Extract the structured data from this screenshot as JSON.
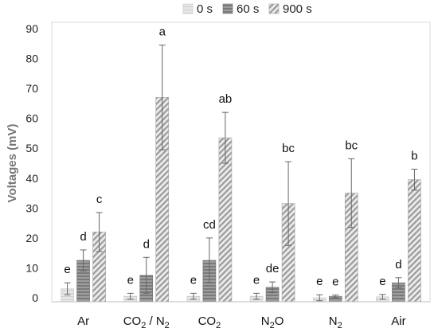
{
  "chart_data": {
    "type": "bar",
    "ylabel": "Voltages (mV)",
    "xlabel": "",
    "ylim": [
      0,
      90
    ],
    "yticks": [
      0,
      10,
      20,
      30,
      40,
      50,
      60,
      70,
      80,
      90
    ],
    "legend_position": "top",
    "categories": [
      {
        "base": "Ar",
        "sub": "",
        "tail": ""
      },
      {
        "base": "CO",
        "sub": "2",
        "tail": " / N",
        "sub2": "2"
      },
      {
        "base": "CO",
        "sub": "2",
        "tail": ""
      },
      {
        "base": "N",
        "sub": "2",
        "tail": "O"
      },
      {
        "base": "N",
        "sub": "2",
        "tail": ""
      },
      {
        "base": "Air",
        "sub": "",
        "tail": ""
      }
    ],
    "series": [
      {
        "name": "0 s",
        "color": "#d9d9d9",
        "pattern": "light",
        "values": [
          3.0,
          0.5,
          0.5,
          0.5,
          0.0,
          0.3
        ],
        "errors": [
          2.0,
          1.0,
          1.0,
          1.0,
          1.0,
          0.8
        ],
        "labels": [
          "e",
          "e",
          "e",
          "e",
          "e",
          "e"
        ]
      },
      {
        "name": "60 s",
        "color": "#8c8c8c",
        "pattern": "dark",
        "values": [
          12.5,
          7.5,
          12.5,
          3.5,
          0.5,
          5.0
        ],
        "errors": [
          3.5,
          6.0,
          7.5,
          1.8,
          0.4,
          1.7
        ],
        "labels": [
          "d",
          "d",
          "cd",
          "de",
          "e",
          "d"
        ]
      },
      {
        "name": "900 s",
        "color": "#bdbdbd",
        "pattern": "hatch",
        "values": [
          22.0,
          67.0,
          53.5,
          31.5,
          35.0,
          39.5
        ],
        "errors": [
          6.5,
          17.5,
          8.5,
          14.0,
          11.5,
          3.5
        ],
        "labels": [
          "c",
          "a",
          "ab",
          "bc",
          "bc",
          "b"
        ]
      }
    ]
  }
}
